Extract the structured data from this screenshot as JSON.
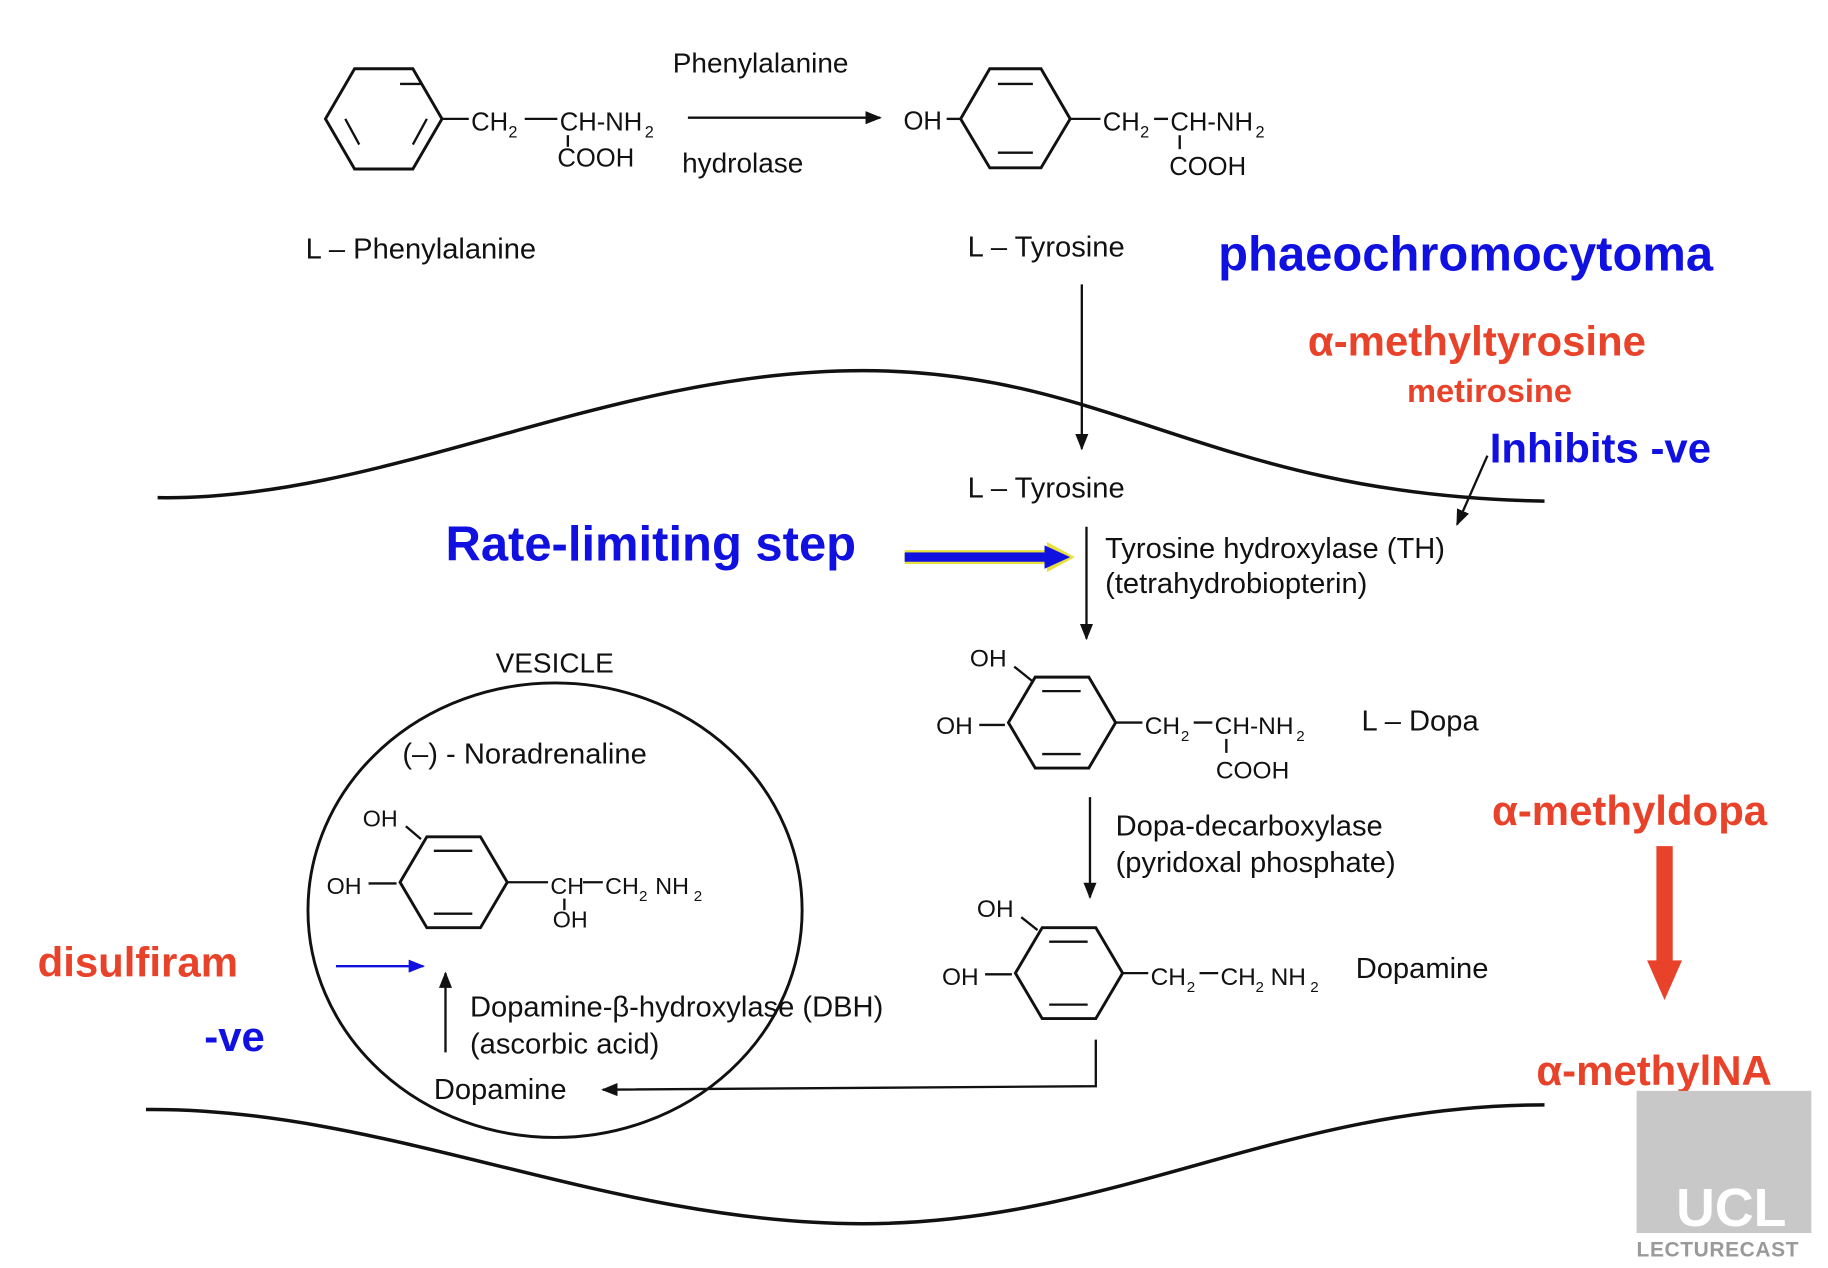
{
  "top": {
    "enzyme_line1": "Phenylalanine",
    "enzyme_line2": "hydrolase",
    "phe_ch2": "CH",
    "phe_sub2": "2",
    "phe_chnh2": "CH-NH",
    "phe_cooh": "COOH",
    "tyr_oh": "OH",
    "tyr_ch2": "CH",
    "tyr_chnh2": "CH-NH",
    "tyr_cooh": "COOH",
    "label_phe": "L – Phenylalanine",
    "label_tyr": "L – Tyrosine"
  },
  "middle": {
    "label_tyr2": "L – Tyrosine",
    "th_line1": "Tyrosine hydroxylase (TH)",
    "th_line2": "(tetrahydrobiopterin)",
    "dopa_oh_top": "OH",
    "dopa_oh_left": "OH",
    "dopa_ch2": "CH",
    "dopa_chnh2": "CH-NH",
    "dopa_cooh": "COOH",
    "label_dopa": "L – Dopa",
    "ddc_line1": "Dopa-decarboxylase",
    "ddc_line2": "(pyridoxal phosphate)",
    "da_oh_top": "OH",
    "da_oh_left": "OH",
    "da_ch2": "CH",
    "da_ch2nh2": "CH",
    "da_nh2": "NH",
    "label_dopamine": "Dopamine"
  },
  "vesicle": {
    "title": "VESICLE",
    "na_label": "(–) - Noradrenaline",
    "na_oh_top": "OH",
    "na_oh_left": "OH",
    "na_ch": "CH",
    "na_ch2nh2": "CH",
    "na_nh2": "NH",
    "na_oh_bottom": "OH",
    "dbh_line1": "Dopamine-β-hydroxylase (DBH)",
    "dbh_line2": "(ascorbic acid)",
    "dopamine": "Dopamine"
  },
  "annotations": {
    "phaeo": "phaeochromocytoma",
    "amt": "α-methyltyrosine",
    "metirosine": "metirosine",
    "inhibits": "Inhibits -ve",
    "rate_limiting": "Rate-limiting step",
    "amd": "α-methyldopa",
    "amna": "α-methylNA",
    "disulfiram": "disulfiram",
    "neg": "-ve"
  },
  "logo": {
    "ucl": "UCL",
    "caption": "LECTURECAST"
  },
  "colors": {
    "blue": "#1010e0",
    "red": "#e8432a",
    "black": "#111111",
    "logo_grey": "#c8c8c8"
  }
}
